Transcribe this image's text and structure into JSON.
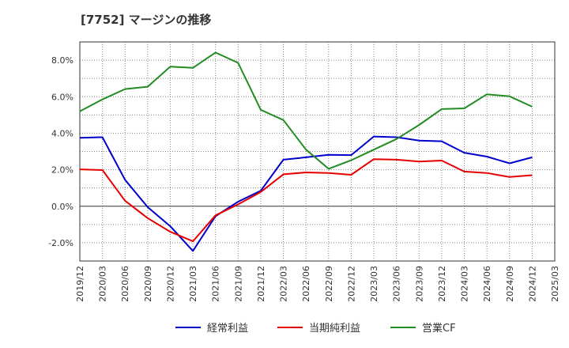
{
  "chart_data": {
    "type": "line",
    "title": "[7752]  マージンの推移",
    "x": [
      "2019/12",
      "2020/03",
      "2020/06",
      "2020/09",
      "2020/12",
      "2021/03",
      "2021/06",
      "2021/09",
      "2021/12",
      "2022/03",
      "2022/06",
      "2022/09",
      "2022/12",
      "2023/03",
      "2023/06",
      "2023/09",
      "2023/12",
      "2024/03",
      "2024/06",
      "2024/09",
      "2024/12",
      "2025/03"
    ],
    "ylim": [
      -3.0,
      9.0
    ],
    "yticks": [
      -2.0,
      0.0,
      2.0,
      4.0,
      6.0,
      8.0
    ],
    "ytick_labels": [
      "-2.0%",
      "0.0%",
      "2.0%",
      "4.0%",
      "6.0%",
      "8.0%"
    ],
    "grid": true,
    "legend_position": "bottom",
    "series": [
      {
        "name": "経常利益",
        "color": "#0000cc",
        "values": [
          3.75,
          3.78,
          1.45,
          -0.05,
          -1.1,
          -2.45,
          -0.55,
          0.25,
          0.85,
          2.55,
          2.68,
          2.82,
          2.8,
          3.82,
          3.78,
          3.6,
          3.56,
          2.93,
          2.72,
          2.35,
          2.68,
          null
        ]
      },
      {
        "name": "当期純利益",
        "color": "#e60000",
        "values": [
          2.02,
          1.98,
          0.3,
          -0.65,
          -1.4,
          -1.92,
          -0.5,
          0.1,
          0.78,
          1.75,
          1.85,
          1.82,
          1.72,
          2.58,
          2.55,
          2.45,
          2.5,
          1.9,
          1.82,
          1.6,
          1.7,
          null
        ]
      },
      {
        "name": "営業CF",
        "color": "#228b22",
        "values": [
          5.2,
          5.85,
          6.42,
          6.55,
          7.65,
          7.58,
          8.42,
          7.85,
          5.28,
          4.72,
          3.1,
          2.05,
          2.52,
          3.1,
          3.68,
          4.45,
          5.32,
          5.36,
          6.13,
          6.02,
          5.45,
          null
        ]
      }
    ]
  }
}
